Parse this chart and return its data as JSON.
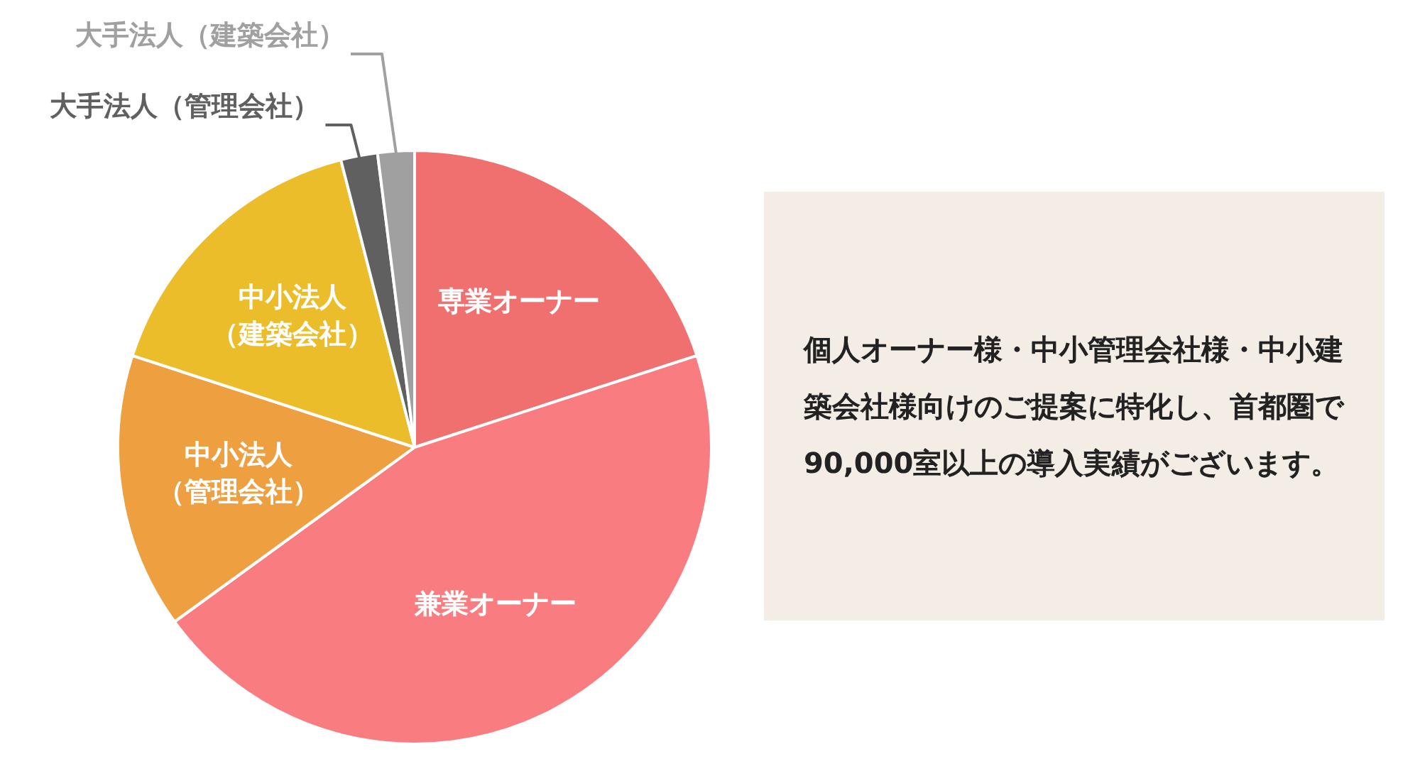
{
  "chart_data": {
    "type": "pie",
    "categories": [
      "専業オーナー",
      "兼業オーナー",
      "中小法人（管理会社）",
      "中小法人（建築会社）",
      "大手法人（管理会社）",
      "大手法人（建築会社）"
    ],
    "values": [
      20,
      45,
      15,
      16,
      2,
      2
    ],
    "colors": [
      "#f07070",
      "#f87c80",
      "#eea040",
      "#ecbd2a",
      "#606060",
      "#a0a0a0"
    ],
    "legend": false,
    "annotations": [
      "個人オーナー様・中小管理会社様・中小建築会社様向けのご提案に特化し、首都圏で90,000室以上の導入実績がございます。"
    ]
  }
}
